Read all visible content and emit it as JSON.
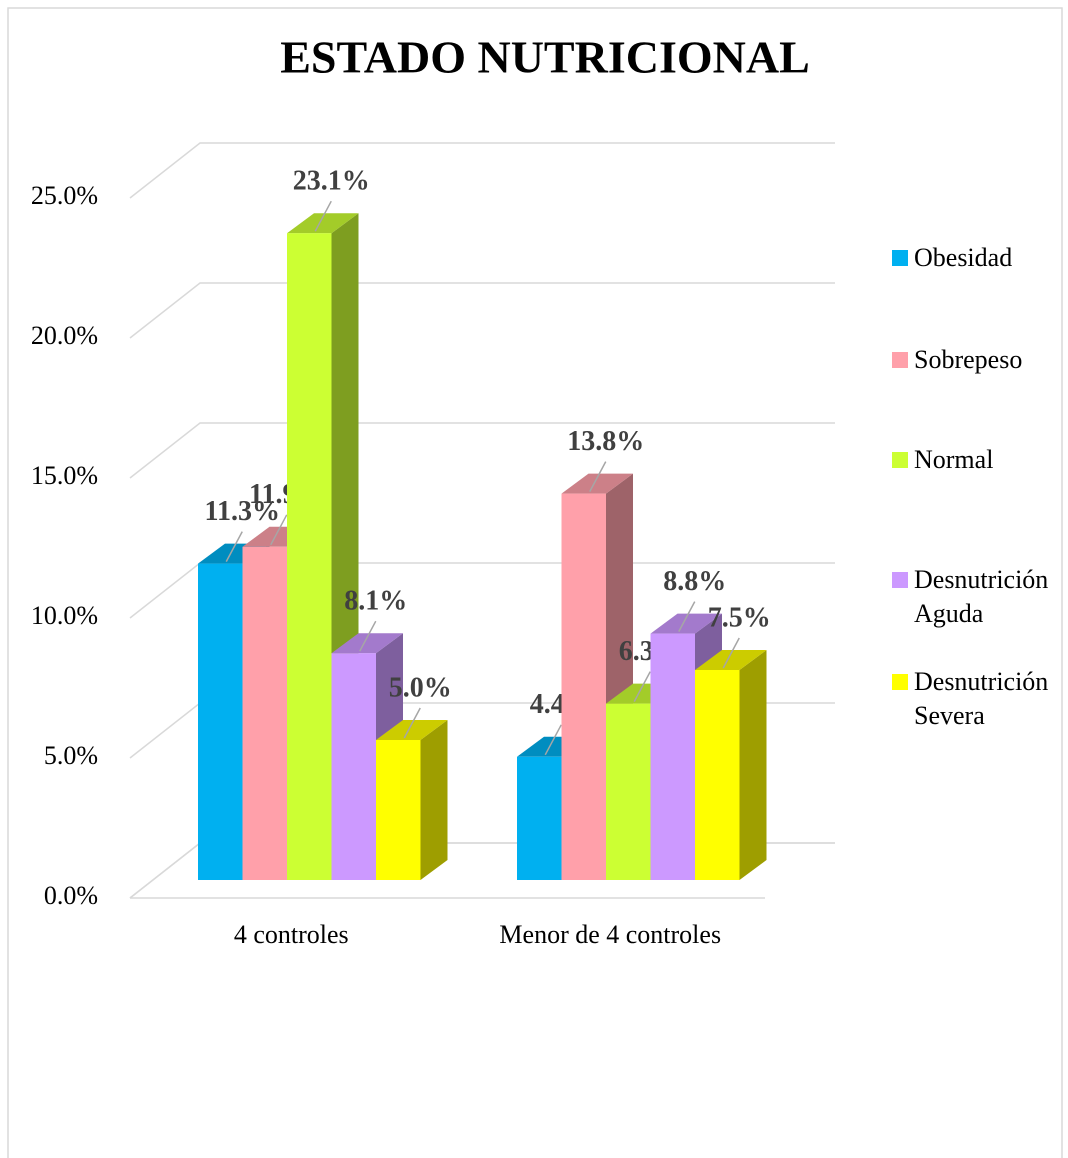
{
  "chart_data": {
    "type": "bar3d",
    "title": "ESTADO NUTRICIONAL",
    "categories": [
      "4 controles",
      "Menor de 4 controles"
    ],
    "series": [
      {
        "name": "Obesidad",
        "color": "#00b0f0",
        "values": [
          11.3,
          4.4
        ],
        "value_labels": [
          "11.3%",
          "4.4%"
        ]
      },
      {
        "name": "Sobrepeso",
        "color": "#ffa0aa",
        "values": [
          11.9,
          13.8
        ],
        "value_labels": [
          "11.9%",
          "13.8%"
        ]
      },
      {
        "name": "Normal",
        "color": "#ccff33",
        "values": [
          23.1,
          6.3
        ],
        "value_labels": [
          "23.1%",
          "6.3%"
        ]
      },
      {
        "name": "Desnutrición Aguda",
        "color": "#cc99ff",
        "values": [
          8.1,
          8.8
        ],
        "value_labels": [
          "8.1%",
          "8.8%"
        ]
      },
      {
        "name": "Desnutrición Severa",
        "color": "#ffff00",
        "values": [
          5.0,
          7.5
        ],
        "value_labels": [
          "5.0%",
          "7.5%"
        ]
      }
    ],
    "ylim": [
      0,
      25
    ],
    "yticks": [
      {
        "value": 0,
        "label": "0.0%"
      },
      {
        "value": 5,
        "label": "5.0%"
      },
      {
        "value": 10,
        "label": "10.0%"
      },
      {
        "value": 15,
        "label": "15.0%"
      },
      {
        "value": 20,
        "label": "20.0%"
      },
      {
        "value": 25,
        "label": "25.0%"
      }
    ],
    "grid": true,
    "legend": "right"
  }
}
